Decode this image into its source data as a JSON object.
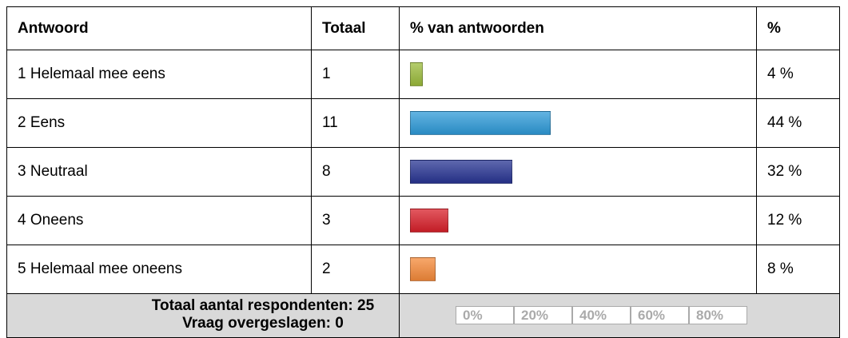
{
  "table": {
    "headers": [
      "Antwoord",
      "Totaal",
      "% van antwoorden",
      "%"
    ],
    "rows": [
      {
        "answer": "1 Helemaal mee eens",
        "total": 1,
        "percent": 4,
        "percent_label": "4 %",
        "color": "#9bbb3b"
      },
      {
        "answer": "2 Eens",
        "total": 11,
        "percent": 44,
        "percent_label": "44 %",
        "color": "#2e9ad8"
      },
      {
        "answer": "3 Neutraal",
        "total": 8,
        "percent": 32,
        "percent_label": "32 %",
        "color": "#283593"
      },
      {
        "answer": "4 Oneens",
        "total": 3,
        "percent": 12,
        "percent_label": "12 %",
        "color": "#d8202a"
      },
      {
        "answer": "5 Helemaal mee oneens",
        "total": 2,
        "percent": 8,
        "percent_label": "8 %",
        "color": "#f58a3a"
      }
    ],
    "footer": {
      "respondents": "Totaal aantal respondenten: 25",
      "skipped": "Vraag overgeslagen: 0"
    },
    "scale": [
      "0%",
      "20%",
      "40%",
      "60%",
      "80%"
    ]
  }
}
